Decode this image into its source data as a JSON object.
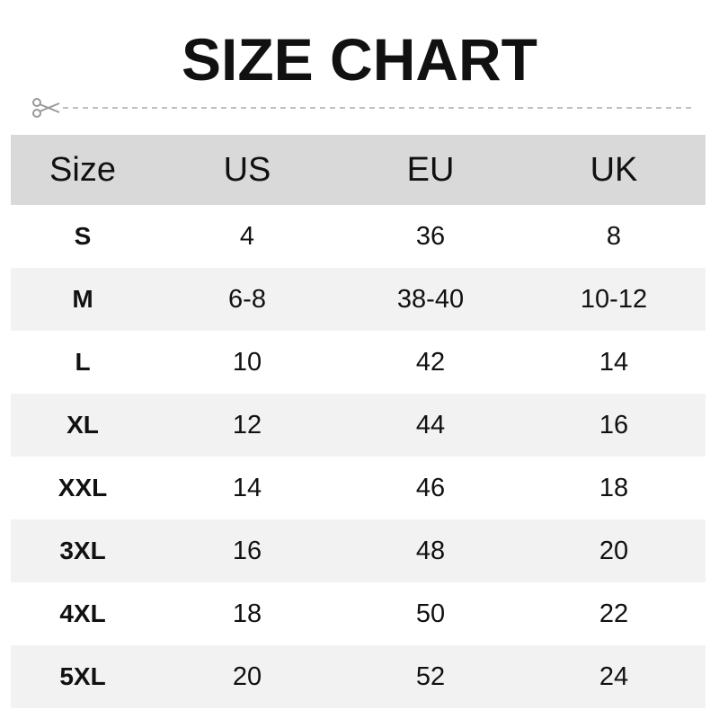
{
  "title": "SIZE CHART",
  "icons": {
    "cut": "scissors-icon"
  },
  "colors": {
    "header_bg": "#d9d9d9",
    "alt_row_bg": "#f2f2f2",
    "cut_line": "#aaaaaa"
  },
  "chart_data": {
    "type": "table",
    "columns": [
      "Size",
      "US",
      "EU",
      "UK"
    ],
    "rows": [
      [
        "S",
        "4",
        "36",
        "8"
      ],
      [
        "M",
        "6-8",
        "38-40",
        "10-12"
      ],
      [
        "L",
        "10",
        "42",
        "14"
      ],
      [
        "XL",
        "12",
        "44",
        "16"
      ],
      [
        "XXL",
        "14",
        "46",
        "18"
      ],
      [
        "3XL",
        "16",
        "48",
        "20"
      ],
      [
        "4XL",
        "18",
        "50",
        "22"
      ],
      [
        "5XL",
        "20",
        "52",
        "24"
      ]
    ]
  }
}
